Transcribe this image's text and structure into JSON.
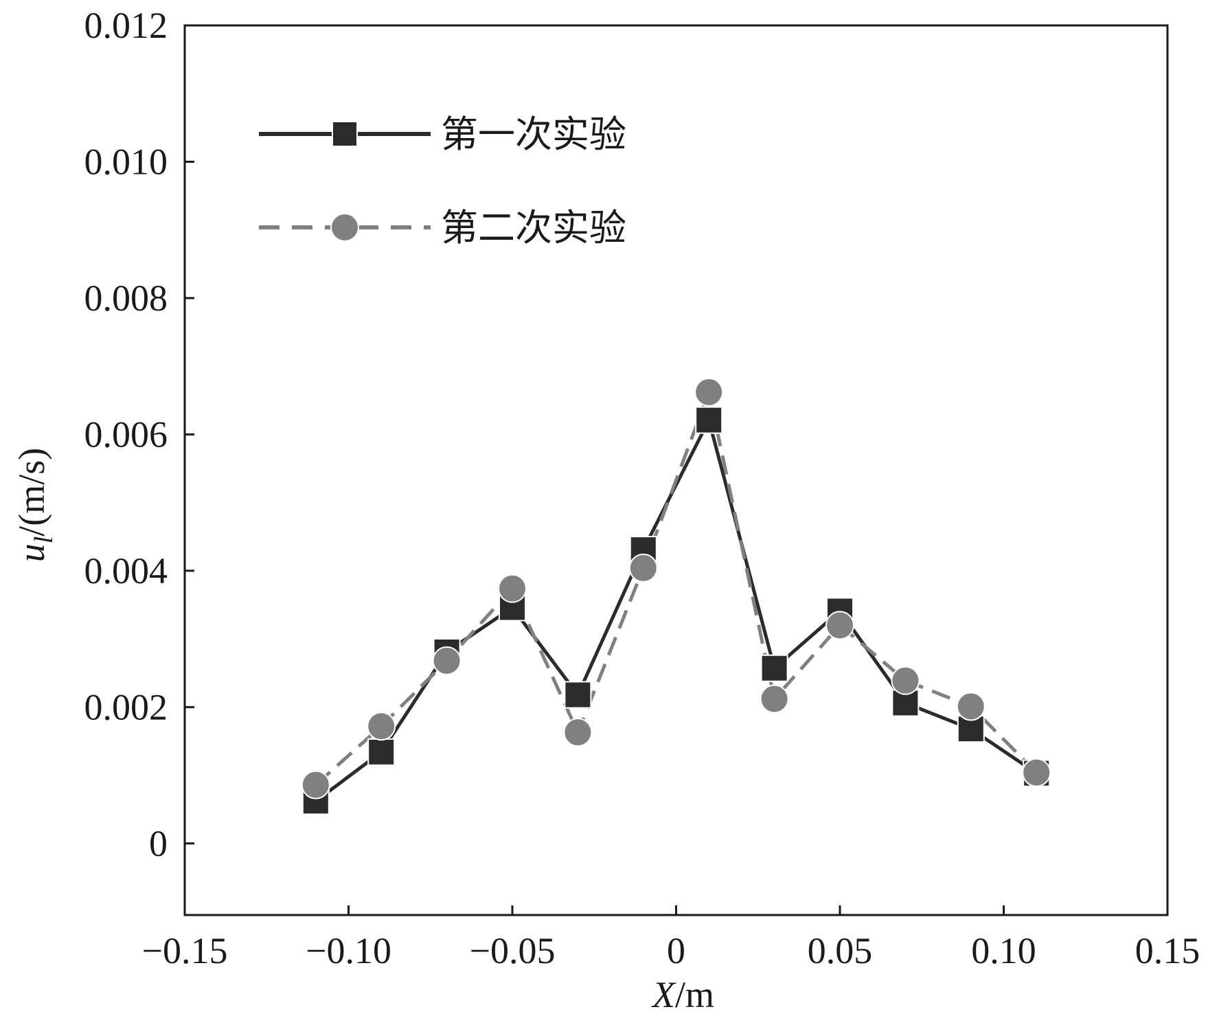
{
  "chart_data": {
    "type": "line",
    "xlabel": {
      "italic": "X",
      "rest": "/m"
    },
    "ylabel": {
      "main": "u",
      "sub": "l",
      "rest": "/(m/s)"
    },
    "xlim": [
      -0.15,
      0.15
    ],
    "ylim": [
      -0.00105,
      0.012
    ],
    "xticks": [
      -0.15,
      -0.1,
      -0.05,
      0,
      0.05,
      0.1,
      0.15
    ],
    "xtick_labels": [
      "−0.15",
      "−0.10",
      "−0.05",
      "0",
      "0.05",
      "0.10",
      "0.15"
    ],
    "yticks": [
      0,
      0.002,
      0.004,
      0.006,
      0.008,
      0.01,
      0.012
    ],
    "ytick_labels": [
      "0",
      "0.002",
      "0.004",
      "0.006",
      "0.008",
      "0.010",
      "0.012"
    ],
    "grid": false,
    "legend_position": "top-left",
    "x": [
      -0.11,
      -0.09,
      -0.07,
      -0.05,
      -0.03,
      -0.01,
      0.01,
      0.03,
      0.05,
      0.07,
      0.09,
      0.11
    ],
    "series": [
      {
        "name": "第一次实验",
        "marker": "square",
        "line_style": "solid",
        "color": "#2b2b2b",
        "values": [
          0.00062,
          0.00134,
          0.00281,
          0.00346,
          0.00218,
          0.00431,
          0.00621,
          0.00257,
          0.00341,
          0.00206,
          0.00168,
          0.00103
        ]
      },
      {
        "name": "第二次实验",
        "marker": "circle",
        "line_style": "dashed",
        "color": "#808080",
        "values": [
          0.00086,
          0.00172,
          0.00268,
          0.00374,
          0.00163,
          0.00404,
          0.00662,
          0.00212,
          0.0032,
          0.00239,
          0.00201,
          0.00104
        ]
      }
    ]
  }
}
